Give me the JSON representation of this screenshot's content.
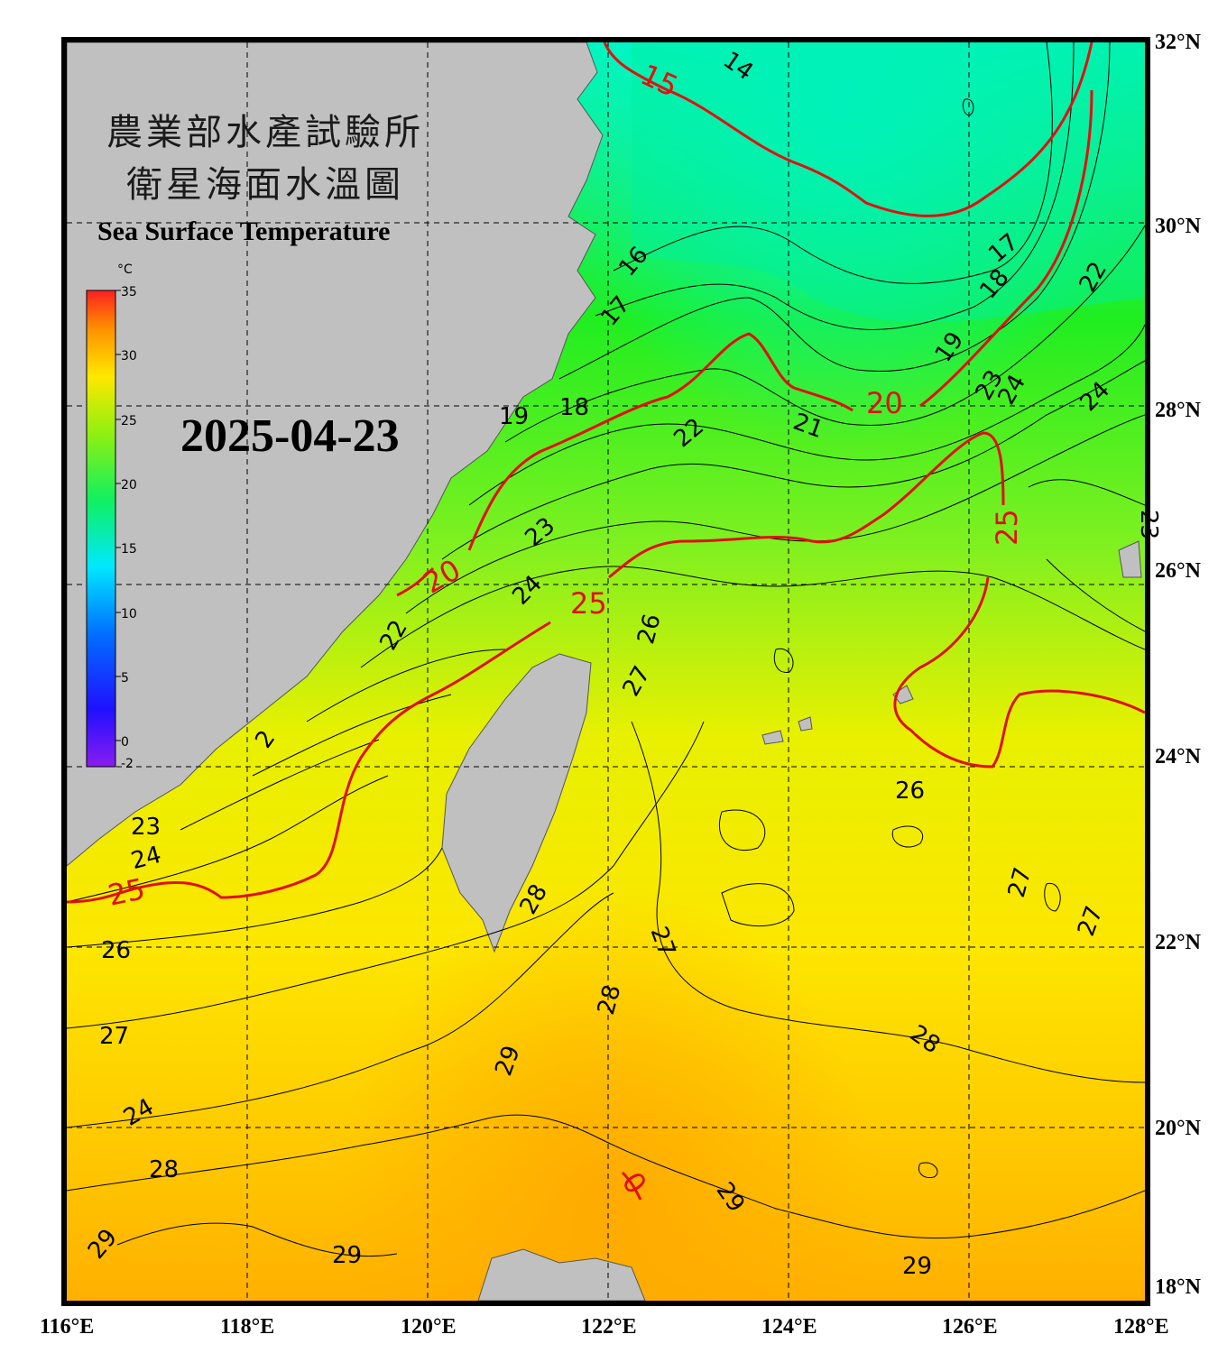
{
  "title": {
    "agency": "農業部水產試驗所",
    "product": "衛星海面水溫圖",
    "english": "Sea Surface Temperature",
    "date": "2025-04-23"
  },
  "colorbar": {
    "unit": "°C",
    "ticks": [
      "35",
      "30",
      "25",
      "20",
      "15",
      "10",
      "5",
      "0",
      "-2"
    ],
    "min": -2,
    "max": 35
  },
  "axes": {
    "longitude_labels": [
      "116°E",
      "118°E",
      "120°E",
      "122°E",
      "124°E",
      "126°E",
      "128°E"
    ],
    "latitude_labels": [
      "32°N",
      "30°N",
      "28°N",
      "26°N",
      "24°N",
      "22°N",
      "20°N",
      "18°N"
    ]
  },
  "colors": {
    "land": "#c0c0c0",
    "major_isotherm": "#e01010",
    "minor_isotherm": "#000000",
    "grid": "#000000"
  },
  "isotherm_labels": {
    "major": [
      "15",
      "20",
      "20",
      "25",
      "25",
      "25",
      "0"
    ],
    "minor": [
      "14",
      "16",
      "17",
      "17",
      "18",
      "18",
      "19",
      "19",
      "21",
      "22",
      "22",
      "23",
      "23",
      "24",
      "24",
      "24",
      "22",
      "23",
      "24",
      "26",
      "27",
      "26",
      "26",
      "27",
      "27",
      "28",
      "28",
      "27",
      "28",
      "29",
      "29",
      "29",
      "29",
      "29",
      "28",
      "2",
      "23",
      "24"
    ]
  }
}
